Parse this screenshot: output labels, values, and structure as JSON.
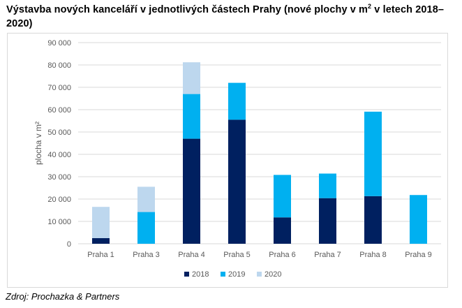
{
  "title": {
    "text_before": "Výstavba nových kanceláří v jednotlivých částech Prahy (nové plochy v m",
    "superscript": "2",
    "text_after": " v letech 2018–2020)"
  },
  "source": "Zdroj: Prochazka & Partners",
  "colors": {
    "2018": "#002060",
    "2019": "#00b0f0",
    "2020": "#bdd7ee",
    "grid": "#d9d9d9",
    "text": "#595959"
  },
  "chart_data": {
    "type": "bar",
    "stacked": true,
    "title": "Výstavba nových kanceláří v jednotlivých částech Prahy (nové plochy v m2 v letech 2018–2020)",
    "categories": [
      "Praha 1",
      "Praha 3",
      "Praha 4",
      "Praha 5",
      "Praha 6",
      "Praha 7",
      "Praha 8",
      "Praha 9"
    ],
    "series": [
      {
        "name": "2018",
        "color": "#002060",
        "values": [
          2500,
          0,
          47000,
          55500,
          11800,
          20400,
          21300,
          0
        ]
      },
      {
        "name": "2019",
        "color": "#00b0f0",
        "values": [
          0,
          14200,
          20000,
          16500,
          19000,
          11000,
          37800,
          21800
        ]
      },
      {
        "name": "2020",
        "color": "#bdd7ee",
        "values": [
          14000,
          11300,
          14200,
          0,
          0,
          0,
          0,
          0
        ]
      }
    ],
    "ylabel": "plocha v m²",
    "xlabel": "",
    "ylim": [
      0,
      90000
    ],
    "yticks": [
      0,
      10000,
      20000,
      30000,
      40000,
      50000,
      60000,
      70000,
      80000,
      90000
    ],
    "ytick_labels": [
      "0",
      "10 000",
      "20 000",
      "30 000",
      "40 000",
      "50 000",
      "60 000",
      "70 000",
      "80 000",
      "90 000"
    ],
    "grid": true,
    "legend_position": "bottom"
  }
}
